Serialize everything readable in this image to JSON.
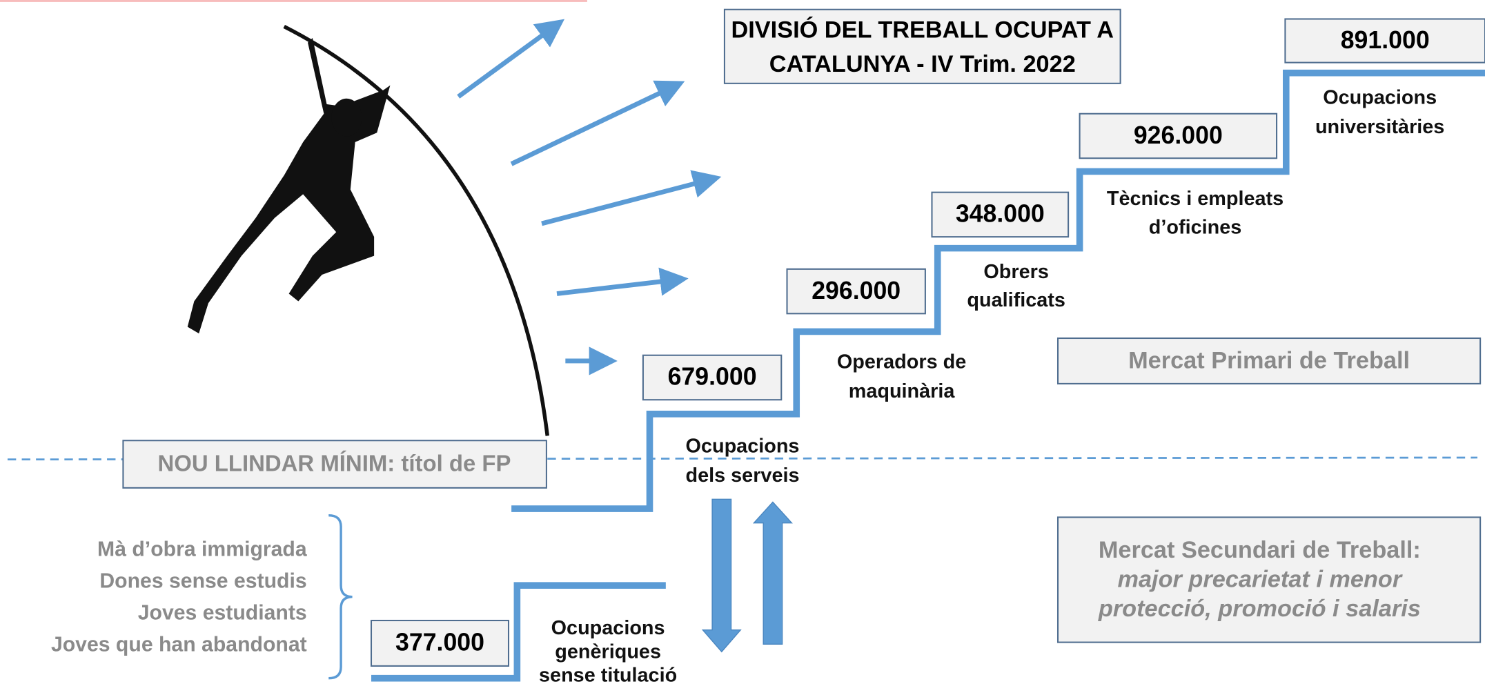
{
  "title": [
    "DIVISIÓ DEL TREBALL OCUPAT A",
    "CATALUNYA - IV Trim. 2022"
  ],
  "levels": [
    {
      "value": "377.000",
      "label": [
        "Ocupacions",
        "genèriques",
        "sense titulació"
      ]
    },
    {
      "value": "679.000",
      "label": [
        "Ocupacions",
        "dels serveis"
      ]
    },
    {
      "value": "296.000",
      "label": [
        "Operadors de",
        "maquinària"
      ]
    },
    {
      "value": "348.000",
      "label": [
        "Obrers",
        "qualificats"
      ]
    },
    {
      "value": "926.000",
      "label": [
        "Tècnics i empleats",
        "d’oficines"
      ]
    },
    {
      "value": "891.000",
      "label": [
        "Ocupacions",
        "universitàries"
      ]
    }
  ],
  "threshold": "NOU LLINDAR MÍNIM: títol de FP",
  "groups": [
    "Mà d’obra immigrada",
    "Dones sense estudis",
    "Joves estudiants",
    "Joves que han abandonat"
  ],
  "primary_market": "Mercat Primari de Treball",
  "secondary_market": [
    "Mercat Secundari de Treball:",
    "major precarietat i menor",
    "protecció, promoció i salaris"
  ]
}
